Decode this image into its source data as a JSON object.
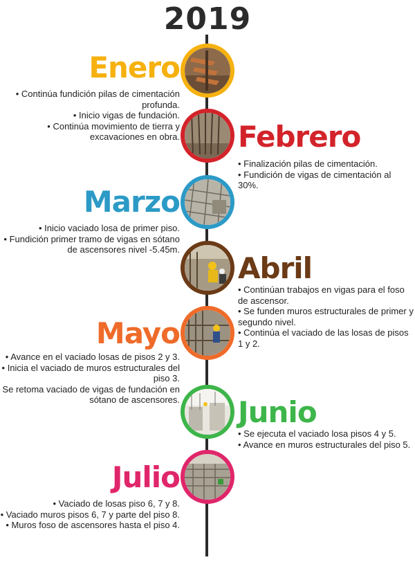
{
  "year": "2019",
  "months": [
    {
      "name": "Enero",
      "color": "#f6b10f",
      "photo": "construction-photo-piles",
      "items": [
        "• Continúa fundición pilas de cimentación profunda.",
        "• Inicio vigas de fundación.",
        "• Continúa movimiento de tierra y excavaciones en obra."
      ]
    },
    {
      "name": "Febrero",
      "color": "#d3232a",
      "photo": "construction-photo-rebar",
      "items": [
        "• Finalización pilas de cimentación.",
        "• Fundición de vigas de cimentación al 30%."
      ]
    },
    {
      "name": "Marzo",
      "color": "#2c9ac6",
      "photo": "construction-photo-slab",
      "items": [
        "• Inicio vaciado losa de primer piso.",
        "• Fundición primer tramo de vigas en sótano de ascensores nivel -5.45m."
      ]
    },
    {
      "name": "Abril",
      "color": "#6b3a16",
      "photo": "construction-photo-workers",
      "items": [
        "• Continúan trabajos en vigas para el foso de ascensor.",
        "• Se funden muros estructurales de primer y segundo nivel.",
        "• Continúa el vaciado de las losas de pisos 1 y 2."
      ]
    },
    {
      "name": "Mayo",
      "color": "#ef6b2a",
      "photo": "construction-photo-formwork",
      "items": [
        "• Avance en el vaciado losas de pisos 2 y 3.",
        "• Inicia el vaciado de muros estructurales del piso 3.",
        "• Se retoma vaciado de vigas de fundación en sótano de ascensores."
      ]
    },
    {
      "name": "Junio",
      "color": "#3db54a",
      "photo": "construction-photo-walls",
      "items": [
        "• Se ejecuta el vaciado losa pisos 4 y 5.",
        "• Avance en muros estructurales del piso 5."
      ]
    },
    {
      "name": "Julio",
      "color": "#e0266a",
      "photo": "construction-photo-deck",
      "items": [
        "• Vaciado de losas piso 6, 7 y 8.",
        "• Vaciado muros pisos 6, 7 y parte del piso 8.",
        "• Muros foso de ascensores hasta el piso 4."
      ]
    }
  ]
}
